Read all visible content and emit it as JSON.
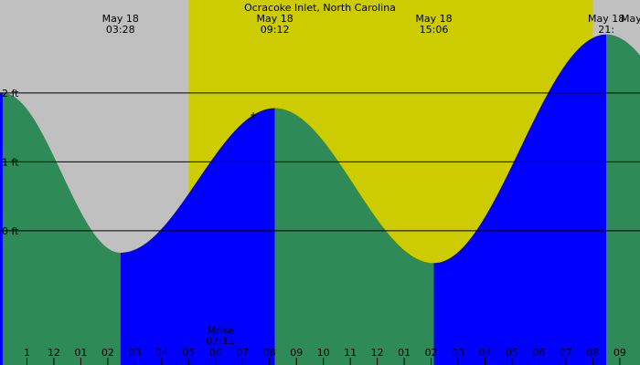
{
  "chart_data": {
    "type": "area",
    "title": "Ocracoke Inlet, North Carolina",
    "xlabel": "",
    "ylabel": "",
    "x_range_hours": [
      -1.0,
      22.75
    ],
    "ylim_ft": [
      -1.95,
      3.35
    ],
    "y_ticks": [
      {
        "value": 2,
        "label": "2 ft"
      },
      {
        "value": 1,
        "label": "1 ft"
      },
      {
        "value": 0,
        "label": "0 ft"
      }
    ],
    "x_tick_labels": [
      "1",
      "12",
      "01",
      "02",
      "03",
      "04",
      "05",
      "06",
      "07",
      "08",
      "09",
      "10",
      "11",
      "12",
      "01",
      "02",
      "03",
      "04",
      "05",
      "06",
      "07",
      "08",
      "09"
    ],
    "extremes": [
      {
        "type": "high",
        "hour": -0.9,
        "height_ft": 2.0,
        "date_label": "",
        "time_label": ""
      },
      {
        "type": "low",
        "hour": 3.47,
        "height_ft": -0.32,
        "date_label": "May 18",
        "time_label": "03:28"
      },
      {
        "type": "high",
        "hour": 9.2,
        "height_ft": 1.78,
        "date_label": "May 18",
        "time_label": "09:12"
      },
      {
        "type": "low",
        "hour": 15.1,
        "height_ft": -0.47,
        "date_label": "May 18",
        "time_label": "15:06"
      },
      {
        "type": "high",
        "hour": 21.5,
        "height_ft": 2.85,
        "date_label": "May 18",
        "time_label": "21:"
      }
    ],
    "daylight_hours": [
      6.0,
      21.0
    ],
    "moonrise": {
      "label": "Mrise",
      "time": "07:11",
      "hour": 7.18
    },
    "colors": {
      "night_bg": "#c0c0c0",
      "day_bg": "#cccc00",
      "falling": "#2e8b57",
      "rising": "#0000ff",
      "gridline": "#000000"
    },
    "partial_top_right_label": "May"
  }
}
